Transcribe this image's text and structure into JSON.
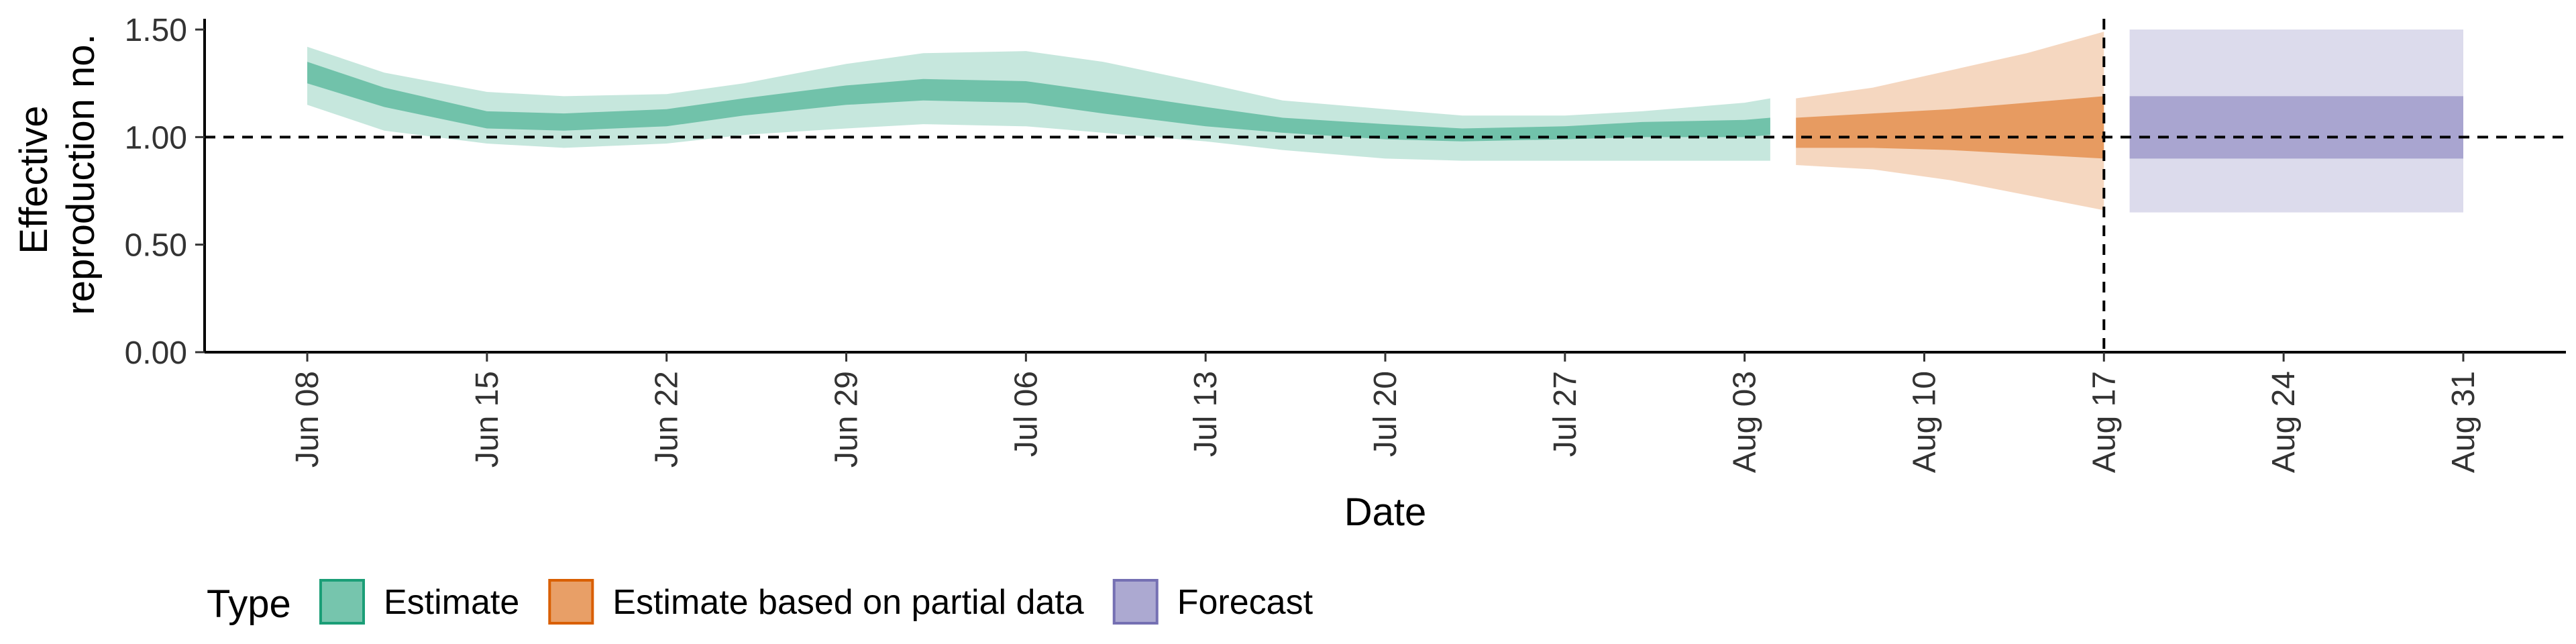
{
  "chart_data": {
    "type": "area",
    "xlabel": "Date",
    "ylabel": [
      "Effective",
      "reproduction no."
    ],
    "ylim": [
      0,
      1.55
    ],
    "y_ticks": [
      0,
      0.5,
      1.0,
      1.5
    ],
    "y_tick_labels": [
      "0.00",
      "0.50",
      "1.00",
      "1.50"
    ],
    "x_ticks": [
      "2020-06-08",
      "2020-06-15",
      "2020-06-22",
      "2020-06-29",
      "2020-07-06",
      "2020-07-13",
      "2020-07-20",
      "2020-07-27",
      "2020-08-03",
      "2020-08-10",
      "2020-08-17",
      "2020-08-24",
      "2020-08-31"
    ],
    "x_tick_labels": [
      "Jun 08",
      "Jun 15",
      "Jun 22",
      "Jun 29",
      "Jul 06",
      "Jul 13",
      "Jul 20",
      "Jul 27",
      "Aug 03",
      "Aug 10",
      "Aug 17",
      "Aug 24",
      "Aug 31"
    ],
    "xlim": [
      "2020-06-04",
      "2020-09-04"
    ],
    "reference_hline": 1.0,
    "reference_vline": "2020-08-17",
    "grid": false,
    "legend": {
      "title": "Type",
      "placement": "bottom-left",
      "entries": [
        "Estimate",
        "Estimate based on partial data",
        "Forecast"
      ]
    },
    "colors": {
      "Estimate": "#1b9e77",
      "Estimate based on partial data": "#d95f02",
      "Forecast": "#7570b3"
    },
    "series": [
      {
        "name": "Estimate",
        "x": [
          "2020-06-08",
          "2020-06-11",
          "2020-06-15",
          "2020-06-18",
          "2020-06-22",
          "2020-06-25",
          "2020-06-29",
          "2020-07-02",
          "2020-07-06",
          "2020-07-09",
          "2020-07-13",
          "2020-07-16",
          "2020-07-20",
          "2020-07-23",
          "2020-07-27",
          "2020-07-30",
          "2020-08-03",
          "2020-08-04"
        ],
        "lower90": [
          1.15,
          1.03,
          0.97,
          0.95,
          0.97,
          1.01,
          1.04,
          1.06,
          1.05,
          1.02,
          0.98,
          0.94,
          0.9,
          0.89,
          0.89,
          0.89,
          0.89,
          0.89
        ],
        "upper90": [
          1.42,
          1.3,
          1.21,
          1.19,
          1.2,
          1.25,
          1.34,
          1.39,
          1.4,
          1.35,
          1.25,
          1.17,
          1.13,
          1.1,
          1.1,
          1.12,
          1.16,
          1.18
        ],
        "lower50": [
          1.25,
          1.14,
          1.04,
          1.03,
          1.05,
          1.1,
          1.15,
          1.17,
          1.16,
          1.11,
          1.05,
          1.02,
          0.99,
          0.98,
          0.99,
          1.0,
          1.0,
          1.01
        ],
        "upper50": [
          1.35,
          1.23,
          1.12,
          1.11,
          1.13,
          1.18,
          1.24,
          1.27,
          1.26,
          1.21,
          1.14,
          1.09,
          1.06,
          1.04,
          1.05,
          1.07,
          1.08,
          1.09
        ]
      },
      {
        "name": "Estimate based on partial data",
        "x": [
          "2020-08-05",
          "2020-08-08",
          "2020-08-11",
          "2020-08-14",
          "2020-08-17"
        ],
        "lower90": [
          0.87,
          0.85,
          0.8,
          0.73,
          0.66
        ],
        "upper90": [
          1.18,
          1.23,
          1.31,
          1.39,
          1.49
        ],
        "lower50": [
          0.95,
          0.95,
          0.94,
          0.92,
          0.9
        ],
        "upper50": [
          1.09,
          1.11,
          1.13,
          1.16,
          1.19
        ]
      },
      {
        "name": "Forecast",
        "x": [
          "2020-08-18",
          "2020-08-31"
        ],
        "lower90": [
          0.65,
          0.65
        ],
        "upper90": [
          1.5,
          1.5
        ],
        "lower50": [
          0.9,
          0.9
        ],
        "upper50": [
          1.19,
          1.19
        ]
      }
    ]
  }
}
